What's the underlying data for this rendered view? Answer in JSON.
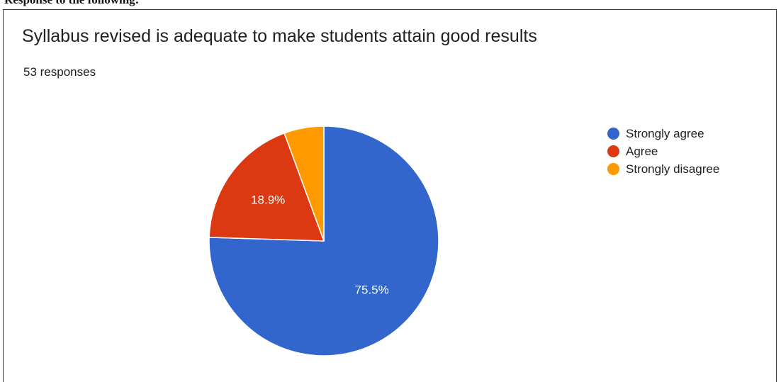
{
  "page_heading": "Response to the following:",
  "chart_data": {
    "type": "pie",
    "title": "Syllabus revised is adequate to make students attain good results",
    "subtitle": "53 responses",
    "slices": [
      {
        "name": "Strongly agree",
        "value": 75.5,
        "label": "75.5%",
        "color": "#3366cc"
      },
      {
        "name": "Agree",
        "value": 18.9,
        "label": "18.9%",
        "color": "#dc3912"
      },
      {
        "name": "Strongly disagree",
        "value": 5.6,
        "label": "",
        "color": "#ff9900"
      }
    ],
    "legend_position": "right"
  }
}
